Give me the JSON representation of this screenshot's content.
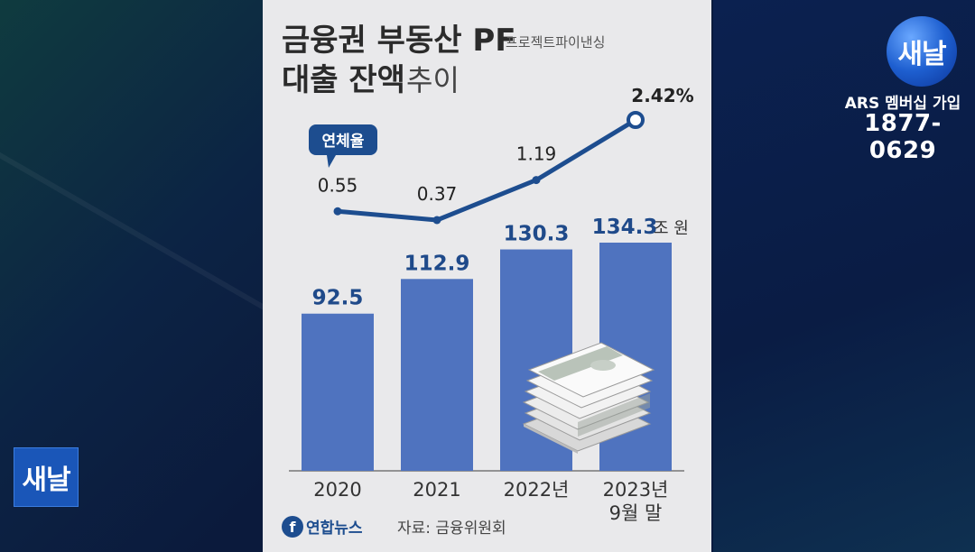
{
  "title": {
    "line1": "금융권 부동산 PF",
    "sub": "프로젝트파이낸싱",
    "line2_bold": "대출 잔액",
    "line2_light": "추이"
  },
  "rate_badge": "연체율",
  "unit_label": "조 원",
  "source": {
    "brand": "연합뉴스",
    "text": "자료: 금융위원회"
  },
  "broadcaster": {
    "logo": "새날",
    "ars_label": "ARS 멤버십 가입",
    "ars_phone": "1877-0629"
  },
  "colors": {
    "bar": "#4f73bf",
    "bar_label": "#1f4a8a",
    "line": "#1d4d8f"
  },
  "chart_data": {
    "type": "bar",
    "categories": [
      "2020",
      "2021",
      "2022년",
      "2023년\n9월 말"
    ],
    "series": [
      {
        "name": "",
        "type": "bar",
        "values": [
          92.5,
          112.9,
          130.3,
          134.3
        ]
      },
      {
        "name": "연체율",
        "type": "line",
        "values": [
          0.55,
          0.37,
          1.19,
          2.42
        ]
      }
    ],
    "bar_value_labels": [
      "92.5",
      "112.9",
      "130.3",
      "134.3"
    ],
    "line_value_labels": [
      "0.55",
      "0.37",
      "1.19",
      "2.42%"
    ],
    "bar_unit": "조 원",
    "ylim": [
      0,
      134.3
    ],
    "grid": false,
    "legend": "none"
  }
}
